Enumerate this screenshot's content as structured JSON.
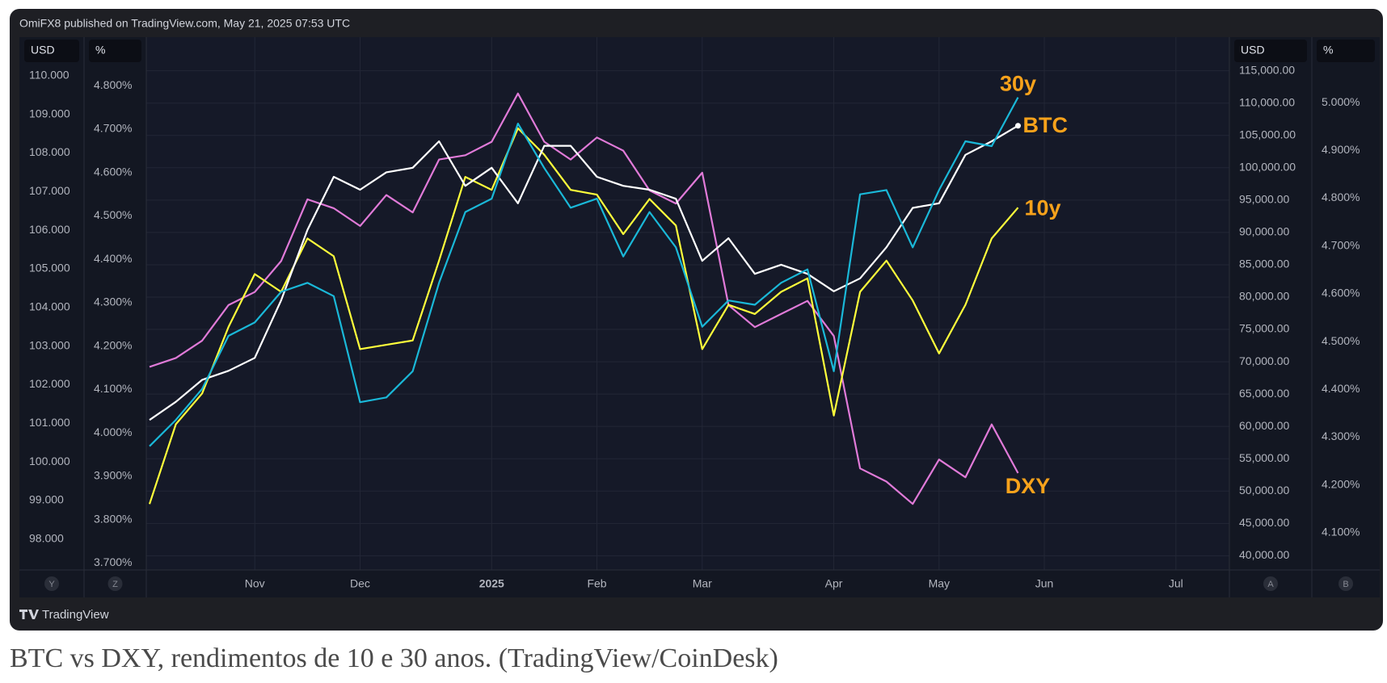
{
  "header": {
    "text": "OmiFX8 published on TradingView.com, May 21, 2025 07:53 UTC"
  },
  "footer": {
    "brand": "TradingView"
  },
  "caption": "BTC vs DXY, rendimentos de 10 e 30 anos. (TradingView/CoinDesk)",
  "chart_data": {
    "type": "line",
    "categories": [
      null,
      null,
      null,
      null,
      "Nov",
      null,
      null,
      null,
      "Dec",
      null,
      null,
      null,
      null,
      "2025",
      null,
      null,
      null,
      "Feb",
      null,
      null,
      null,
      "Mar",
      null,
      null,
      null,
      null,
      "Apr",
      null,
      null,
      null,
      "May",
      null,
      null,
      null,
      "Jun",
      null,
      null,
      null,
      null,
      "Jul",
      null,
      null
    ],
    "axes": [
      {
        "unit": "USD",
        "corner": "Y",
        "ylim": [
          97.2,
          111.0
        ],
        "grid": false,
        "yticks": [
          {
            "value": 98,
            "label": "98.000"
          },
          {
            "value": 99,
            "label": "99.000"
          },
          {
            "value": 100,
            "label": "100.000"
          },
          {
            "value": 101,
            "label": "101.000"
          },
          {
            "value": 102,
            "label": "102.000"
          },
          {
            "value": 103,
            "label": "103.000"
          },
          {
            "value": 104,
            "label": "104.000"
          },
          {
            "value": 105,
            "label": "105.000"
          },
          {
            "value": 106,
            "label": "106.000"
          },
          {
            "value": 107,
            "label": "107.000"
          },
          {
            "value": 108,
            "label": "108.000"
          },
          {
            "value": 109,
            "label": "109.000"
          },
          {
            "value": 110,
            "label": "110.000"
          }
        ]
      },
      {
        "unit": "%",
        "corner": "Z",
        "ylim": [
          3.684,
          4.912
        ],
        "grid": false,
        "yticks": [
          {
            "value": 3.7,
            "label": "3.700%"
          },
          {
            "value": 3.8,
            "label": "3.800%"
          },
          {
            "value": 3.9,
            "label": "3.900%"
          },
          {
            "value": 4.0,
            "label": "4.000%"
          },
          {
            "value": 4.1,
            "label": "4.100%"
          },
          {
            "value": 4.2,
            "label": "4.200%"
          },
          {
            "value": 4.3,
            "label": "4.300%"
          },
          {
            "value": 4.4,
            "label": "4.400%"
          },
          {
            "value": 4.5,
            "label": "4.500%"
          },
          {
            "value": 4.6,
            "label": "4.600%"
          },
          {
            "value": 4.7,
            "label": "4.700%"
          },
          {
            "value": 4.8,
            "label": "4.800%"
          }
        ]
      },
      {
        "unit": "USD",
        "corner": "A",
        "ylim": [
          37800,
          120200
        ],
        "grid": true,
        "yticks": [
          {
            "value": 40000,
            "label": "40,000.00"
          },
          {
            "value": 45000,
            "label": "45,000.00"
          },
          {
            "value": 50000,
            "label": "50,000.00"
          },
          {
            "value": 55000,
            "label": "55,000.00"
          },
          {
            "value": 60000,
            "label": "60,000.00"
          },
          {
            "value": 65000,
            "label": "65,000.00"
          },
          {
            "value": 70000,
            "label": "70,000.00"
          },
          {
            "value": 75000,
            "label": "75,000.00"
          },
          {
            "value": 80000,
            "label": "80,000.00"
          },
          {
            "value": 85000,
            "label": "85,000.00"
          },
          {
            "value": 90000,
            "label": "90,000.00"
          },
          {
            "value": 95000,
            "label": "95,000.00"
          },
          {
            "value": 100000,
            "label": "100,000.00"
          },
          {
            "value": 105000,
            "label": "105,000.00"
          },
          {
            "value": 110000,
            "label": "110,000.00"
          },
          {
            "value": 115000,
            "label": "115,000.00"
          }
        ]
      },
      {
        "unit": "%",
        "corner": "B",
        "ylim": [
          4.022,
          5.137
        ],
        "grid": false,
        "yticks": [
          {
            "value": 4.1,
            "label": "4.100%"
          },
          {
            "value": 4.2,
            "label": "4.200%"
          },
          {
            "value": 4.3,
            "label": "4.300%"
          },
          {
            "value": 4.4,
            "label": "4.400%"
          },
          {
            "value": 4.5,
            "label": "4.500%"
          },
          {
            "value": 4.6,
            "label": "4.600%"
          },
          {
            "value": 4.7,
            "label": "4.700%"
          },
          {
            "value": 4.8,
            "label": "4.800%"
          },
          {
            "value": 4.9,
            "label": "4.900%"
          },
          {
            "value": 5.0,
            "label": "5.000%"
          }
        ]
      }
    ],
    "series": [
      {
        "name": "DXY",
        "color": "#e07ad8",
        "axis": 0,
        "values": [
          102.46,
          102.69,
          103.14,
          104.06,
          104.4,
          105.2,
          106.8,
          106.57,
          106.11,
          106.91,
          106.46,
          107.83,
          107.94,
          108.29,
          109.54,
          108.29,
          107.83,
          108.4,
          108.06,
          107.03,
          106.69,
          107.49,
          104.06,
          103.49,
          103.83,
          104.17,
          103.26,
          99.83,
          99.49,
          98.91,
          100.06,
          99.6,
          100.97,
          99.71,
          null,
          null,
          null,
          null,
          null,
          null,
          null,
          null
        ]
      },
      {
        "name": "10y",
        "color": "#ffff3b",
        "axis": 1,
        "values": [
          3.836,
          4.02,
          4.091,
          4.244,
          4.366,
          4.325,
          4.448,
          4.407,
          4.193,
          4.203,
          4.213,
          4.397,
          4.59,
          4.56,
          4.702,
          4.641,
          4.56,
          4.549,
          4.458,
          4.539,
          4.478,
          4.193,
          4.295,
          4.274,
          4.325,
          4.356,
          4.04,
          4.325,
          4.397,
          4.305,
          4.183,
          4.295,
          4.448,
          4.519,
          null,
          null,
          null,
          null,
          null,
          null,
          null,
          null
        ]
      },
      {
        "name": "BTC",
        "color": "#ffffff",
        "axis": 2,
        "values": [
          61000,
          63800,
          67200,
          68600,
          70600,
          79500,
          90400,
          98600,
          96600,
          99300,
          100000,
          104100,
          97200,
          100000,
          94500,
          103400,
          103400,
          98600,
          97200,
          96600,
          95200,
          85600,
          89100,
          83600,
          85000,
          83600,
          80900,
          82900,
          87700,
          93800,
          94500,
          102000,
          104100,
          106500,
          null,
          null,
          null,
          null,
          null,
          null,
          null,
          null
        ]
      },
      {
        "name": "30y",
        "color": "#1ab8d8",
        "axis": 3,
        "values": [
          4.281,
          4.336,
          4.401,
          4.512,
          4.54,
          4.604,
          4.623,
          4.595,
          4.373,
          4.383,
          4.438,
          4.623,
          4.771,
          4.799,
          4.956,
          4.863,
          4.78,
          4.799,
          4.678,
          4.771,
          4.697,
          4.531,
          4.586,
          4.577,
          4.623,
          4.651,
          4.438,
          4.808,
          4.817,
          4.697,
          4.817,
          4.919,
          4.909,
          5.011,
          null,
          null,
          null,
          null,
          null,
          null,
          null,
          null
        ]
      }
    ]
  }
}
